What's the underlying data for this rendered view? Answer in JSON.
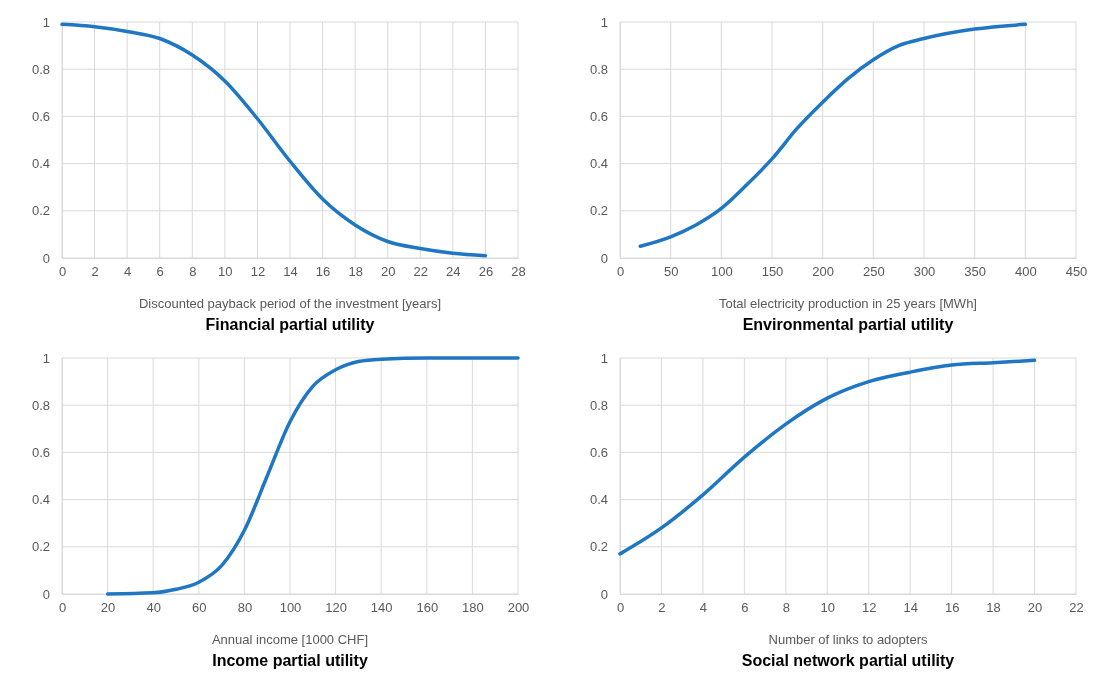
{
  "chart_data": [
    {
      "type": "line",
      "title": "Financial partial utility",
      "xlabel": "Discounted payback period of the investment [years]",
      "xlim": [
        0,
        28
      ],
      "xticks": [
        0,
        2,
        4,
        6,
        8,
        10,
        12,
        14,
        16,
        18,
        20,
        22,
        24,
        26,
        28
      ],
      "ylim": [
        0,
        1
      ],
      "yticks": [
        0,
        0.2,
        0.4,
        0.6,
        0.8,
        1
      ],
      "grid": true,
      "series": [
        {
          "color": "#1f77c4",
          "x": [
            0,
            2,
            4,
            6,
            8,
            10,
            12,
            14,
            16,
            18,
            20,
            22,
            24,
            26
          ],
          "values": [
            0.99,
            0.98,
            0.96,
            0.93,
            0.86,
            0.75,
            0.59,
            0.41,
            0.25,
            0.14,
            0.07,
            0.04,
            0.02,
            0.01
          ]
        }
      ]
    },
    {
      "type": "line",
      "title": "Environmental partial utility",
      "xlabel": "Total electricity production in 25 years [MWh]",
      "xlim": [
        0,
        450
      ],
      "xticks": [
        0,
        50,
        100,
        150,
        200,
        250,
        300,
        350,
        400,
        450
      ],
      "ylim": [
        0,
        1
      ],
      "yticks": [
        0,
        0.2,
        0.4,
        0.6,
        0.8,
        1
      ],
      "grid": true,
      "series": [
        {
          "color": "#1f77c4",
          "x": [
            20,
            50,
            75,
            100,
            125,
            150,
            175,
            200,
            225,
            250,
            275,
            300,
            350,
            400
          ],
          "values": [
            0.05,
            0.09,
            0.14,
            0.21,
            0.31,
            0.42,
            0.55,
            0.66,
            0.76,
            0.84,
            0.9,
            0.93,
            0.97,
            0.99
          ]
        }
      ]
    },
    {
      "type": "line",
      "title": "Income partial utility",
      "xlabel": "Annual income [1000 CHF]",
      "xlim": [
        0,
        200
      ],
      "xticks": [
        0,
        20,
        40,
        60,
        80,
        100,
        120,
        140,
        160,
        180,
        200
      ],
      "ylim": [
        0,
        1
      ],
      "yticks": [
        0,
        0.2,
        0.4,
        0.6,
        0.8,
        1
      ],
      "grid": true,
      "series": [
        {
          "color": "#1f77c4",
          "x": [
            20,
            40,
            50,
            60,
            70,
            80,
            90,
            100,
            110,
            120,
            130,
            140,
            160,
            180,
            200
          ],
          "values": [
            0,
            0.005,
            0.02,
            0.05,
            0.12,
            0.27,
            0.5,
            0.73,
            0.88,
            0.95,
            0.985,
            0.995,
            1,
            1,
            1
          ]
        }
      ]
    },
    {
      "type": "line",
      "title": "Social network partial utility",
      "xlabel": "Number of links to adopters",
      "xlim": [
        0,
        22
      ],
      "xticks": [
        0,
        2,
        4,
        6,
        8,
        10,
        12,
        14,
        16,
        18,
        20,
        22
      ],
      "ylim": [
        0,
        1
      ],
      "yticks": [
        0,
        0.2,
        0.4,
        0.6,
        0.8,
        1
      ],
      "grid": true,
      "series": [
        {
          "color": "#1f77c4",
          "x": [
            0,
            2,
            4,
            6,
            8,
            10,
            12,
            14,
            16,
            18,
            20
          ],
          "values": [
            0.17,
            0.28,
            0.42,
            0.58,
            0.72,
            0.83,
            0.9,
            0.94,
            0.97,
            0.98,
            0.99
          ]
        }
      ]
    }
  ]
}
